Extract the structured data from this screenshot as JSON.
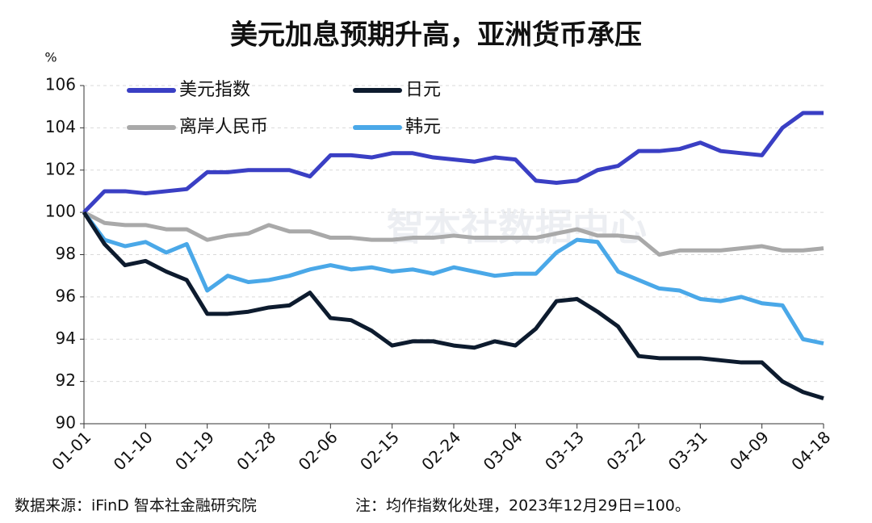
{
  "chart_data": {
    "type": "line",
    "title": "美元加息预期升高，亚洲货币承压",
    "y_unit": "%",
    "watermark": "智本社数据中心",
    "source": "数据来源：iFinD 智本社金融研究院",
    "note": "注：均作指数化处理，2023年12月29日=100。",
    "categories": [
      "01-01",
      null,
      null,
      "01-10",
      null,
      null,
      "01-19",
      null,
      null,
      "01-28",
      null,
      null,
      "02-06",
      null,
      null,
      "02-15",
      null,
      null,
      "02-24",
      null,
      null,
      "03-04",
      null,
      null,
      "03-13",
      null,
      null,
      "03-22",
      null,
      null,
      "03-31",
      null,
      null,
      "04-09",
      null,
      null,
      "04-18"
    ],
    "ylim": [
      90,
      106
    ],
    "yticks": [
      90,
      92,
      94,
      96,
      98,
      100,
      102,
      104,
      106
    ],
    "grid": true,
    "series": [
      {
        "name": "美元指数",
        "color": "#3a3fc4",
        "values": [
          100,
          101.0,
          101.0,
          100.9,
          101.0,
          101.1,
          101.9,
          101.9,
          102.0,
          102.0,
          102.0,
          101.7,
          102.7,
          102.7,
          102.6,
          102.8,
          102.8,
          102.6,
          102.5,
          102.4,
          102.6,
          102.5,
          101.5,
          101.4,
          101.5,
          102.0,
          102.2,
          102.9,
          102.9,
          103.0,
          103.3,
          102.9,
          102.8,
          102.7,
          104.0,
          104.7,
          104.7
        ]
      },
      {
        "name": "日元",
        "color": "#0d1b2e",
        "values": [
          100,
          98.5,
          97.5,
          97.7,
          97.2,
          96.8,
          95.2,
          95.2,
          95.3,
          95.5,
          95.6,
          96.2,
          95.0,
          94.9,
          94.4,
          93.7,
          93.9,
          93.9,
          93.7,
          93.6,
          93.9,
          93.7,
          94.5,
          95.8,
          95.9,
          95.3,
          94.6,
          93.2,
          93.1,
          93.1,
          93.1,
          93.0,
          92.9,
          92.9,
          92.0,
          91.5,
          91.2
        ]
      },
      {
        "name": "离岸人民币",
        "color": "#a9a9a9",
        "values": [
          100,
          99.5,
          99.4,
          99.4,
          99.2,
          99.2,
          98.7,
          98.9,
          99.0,
          99.4,
          99.1,
          99.1,
          98.8,
          98.8,
          98.7,
          98.7,
          98.8,
          98.8,
          98.9,
          98.8,
          98.8,
          98.8,
          98.8,
          99.0,
          99.2,
          98.9,
          98.9,
          98.8,
          98.0,
          98.2,
          98.2,
          98.2,
          98.3,
          98.4,
          98.2,
          98.2,
          98.3
        ]
      },
      {
        "name": "韩元",
        "color": "#4aa8e8",
        "values": [
          100,
          98.7,
          98.4,
          98.6,
          98.1,
          98.5,
          96.3,
          97.0,
          96.7,
          96.8,
          97.0,
          97.3,
          97.5,
          97.3,
          97.4,
          97.2,
          97.3,
          97.1,
          97.4,
          97.2,
          97.0,
          97.1,
          97.1,
          98.1,
          98.7,
          98.6,
          97.2,
          96.8,
          96.4,
          96.3,
          95.9,
          95.8,
          96.0,
          95.7,
          95.6,
          94.0,
          93.8
        ]
      }
    ]
  }
}
